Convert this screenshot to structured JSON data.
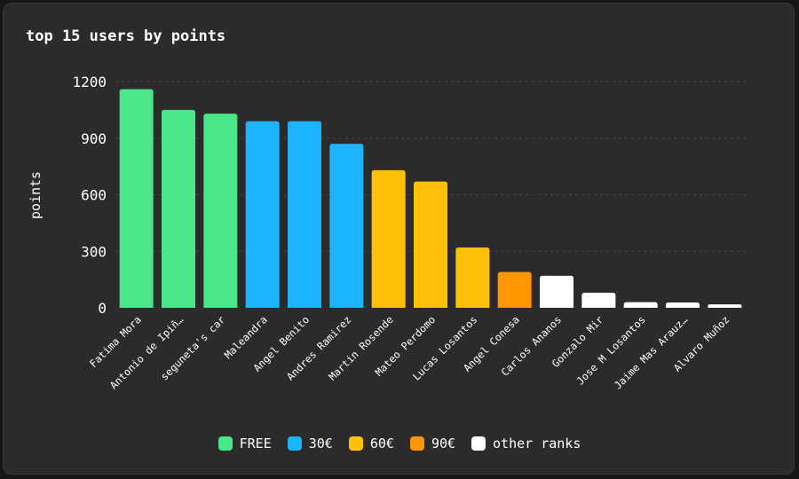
{
  "chart_data": {
    "type": "bar",
    "title": "top 15 users by points",
    "xlabel": "",
    "ylabel": "points",
    "ylim": [
      0,
      1200
    ],
    "yticks": [
      0,
      300,
      600,
      900,
      1200
    ],
    "grid": true,
    "legend_position": "bottom",
    "categories": [
      "Fatima Mora",
      "Antonio de Ipiñ…",
      "seguneta's car",
      "Maleandra",
      "Angel Benito",
      "Andres Ramirez",
      "Martin Rosende",
      "Mateo Perdomo",
      "Lucas Losantos",
      "Angel Conesa",
      "Carlos Ananos",
      "Gonzalo Mir",
      "Jose M Losantos",
      "Jaime Mas Arauz…",
      "Alvaro Muñoz"
    ],
    "values": [
      1160,
      1050,
      1030,
      990,
      990,
      870,
      730,
      670,
      320,
      190,
      170,
      80,
      30,
      28,
      18
    ],
    "ranks": [
      "FREE",
      "FREE",
      "FREE",
      "30€",
      "30€",
      "30€",
      "60€",
      "60€",
      "60€",
      "90€",
      "other ranks",
      "other ranks",
      "other ranks",
      "other ranks",
      "other ranks"
    ],
    "legend": [
      {
        "label": "FREE",
        "color": "#4ae687"
      },
      {
        "label": "30€",
        "color": "#1cb3ff"
      },
      {
        "label": "60€",
        "color": "#ffc107"
      },
      {
        "label": "90€",
        "color": "#ff9800"
      },
      {
        "label": "other ranks",
        "color": "#ffffff"
      }
    ]
  }
}
